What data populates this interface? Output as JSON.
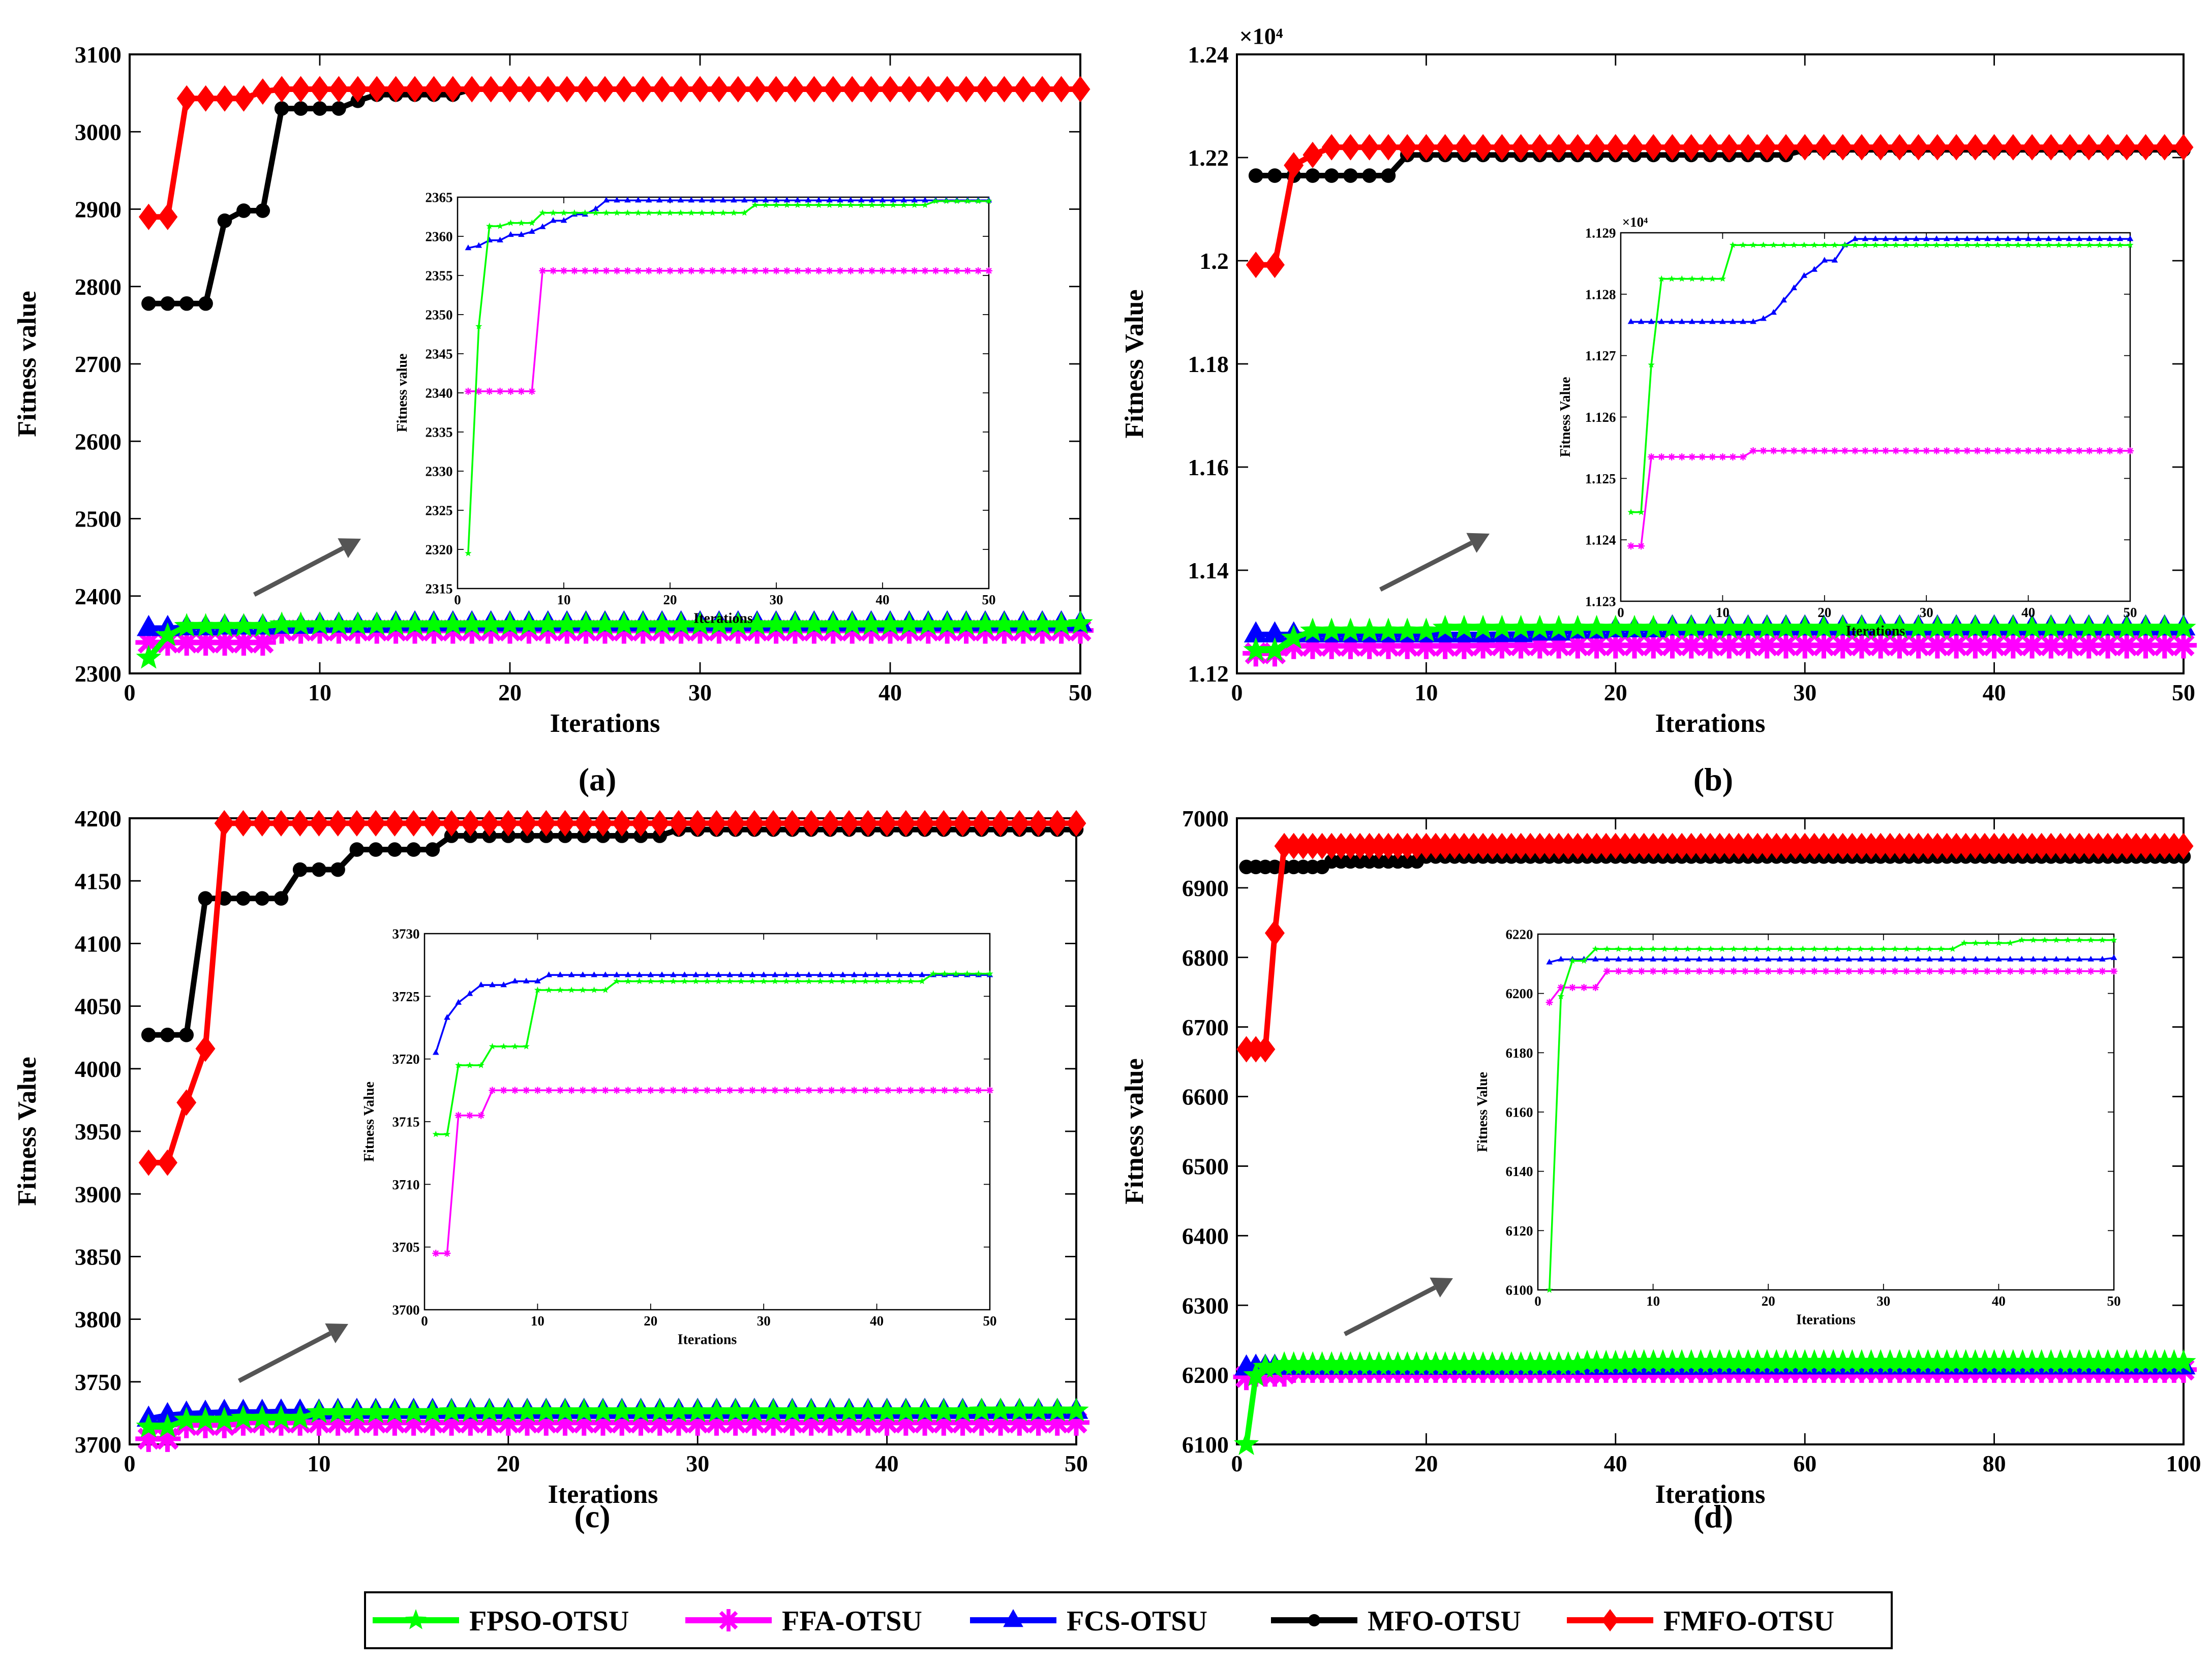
{
  "legend": {
    "entries": [
      {
        "label": "FPSO-OTSU",
        "color": "#00ff00",
        "marker": "star"
      },
      {
        "label": "FFA-OTSU",
        "color": "#ff00ff",
        "marker": "asterisk"
      },
      {
        "label": "FCS-OTSU",
        "color": "#0000ff",
        "marker": "triangle"
      },
      {
        "label": "MFO-OTSU",
        "color": "#000000",
        "marker": "circle"
      },
      {
        "label": "FMFO-OTSU",
        "color": "#ff0000",
        "marker": "diamond"
      }
    ]
  },
  "chart_data": [
    {
      "type": "line",
      "panel_label": "(a)",
      "title": "",
      "xlabel": "Iterations",
      "ylabel": "Fitness value",
      "xlim": [
        0,
        50
      ],
      "ylim": [
        2300,
        3100
      ],
      "xticks": [
        0,
        10,
        20,
        30,
        40,
        50
      ],
      "yticks": [
        2300,
        2400,
        2500,
        2600,
        2700,
        2800,
        2900,
        3000,
        3100
      ],
      "n_iter": 50,
      "series": [
        {
          "name": "FPSO-OTSU",
          "steps": [
            [
              1,
              2320
            ],
            [
              2,
              2349
            ],
            [
              3,
              2361
            ],
            [
              8,
              2363
            ],
            [
              50,
              2364.5
            ]
          ]
        },
        {
          "name": "FFA-OTSU",
          "steps": [
            [
              1,
              2340
            ],
            [
              8,
              2355.5
            ]
          ]
        },
        {
          "name": "FCS-OTSU",
          "steps": [
            [
              1,
              2358.5
            ],
            [
              3,
              2359.5
            ],
            [
              5,
              2360.5
            ],
            [
              8,
              2361.5
            ],
            [
              10,
              2363
            ],
            [
              14,
              2364.5
            ]
          ]
        },
        {
          "name": "MFO-OTSU",
          "steps": [
            [
              1,
              2778
            ],
            [
              5,
              2885
            ],
            [
              6,
              2898
            ],
            [
              8,
              3030
            ],
            [
              12,
              3040
            ],
            [
              13,
              3048
            ],
            [
              18,
              3055
            ]
          ]
        },
        {
          "name": "FMFO-OTSU",
          "steps": [
            [
              1,
              2890
            ],
            [
              3,
              3043
            ],
            [
              7,
              3052
            ],
            [
              8,
              3055
            ]
          ]
        }
      ],
      "inset": {
        "xlabel": "Iterations",
        "ylabel": "Fitness value",
        "xlim": [
          0,
          50
        ],
        "ylim": [
          2315,
          2365
        ],
        "xticks": [
          0,
          10,
          20,
          30,
          40,
          50
        ],
        "yticks": [
          2315,
          2320,
          2325,
          2330,
          2335,
          2340,
          2345,
          2350,
          2355,
          2360,
          2365
        ],
        "series": [
          {
            "name": "FPSO-OTSU",
            "steps": [
              [
                1,
                2319.5
              ],
              [
                2,
                2348.5
              ],
              [
                3,
                2361.3
              ],
              [
                5,
                2361.7
              ],
              [
                8,
                2363
              ],
              [
                28,
                2364
              ],
              [
                45,
                2364.5
              ]
            ]
          },
          {
            "name": "FFA-OTSU",
            "steps": [
              [
                1,
                2340.2
              ],
              [
                8,
                2355.6
              ]
            ]
          },
          {
            "name": "FCS-OTSU",
            "steps": [
              [
                1,
                2358.5
              ],
              [
                2,
                2358.8
              ],
              [
                3,
                2359.5
              ],
              [
                5,
                2360.2
              ],
              [
                7,
                2360.6
              ],
              [
                8,
                2361.2
              ],
              [
                9,
                2362
              ],
              [
                11,
                2362.8
              ],
              [
                13,
                2363.5
              ],
              [
                14,
                2364.6
              ]
            ]
          }
        ]
      }
    },
    {
      "type": "line",
      "panel_label": "(b)",
      "title": "",
      "xlabel": "Iterations",
      "ylabel": "Fitness Value",
      "exponent": "×10⁴",
      "xlim": [
        0,
        50
      ],
      "ylim": [
        1.12,
        1.24
      ],
      "xticks": [
        0,
        10,
        20,
        30,
        40,
        50
      ],
      "yticks": [
        1.12,
        1.14,
        1.16,
        1.18,
        1.2,
        1.22,
        1.24
      ],
      "n_iter": 50,
      "series": [
        {
          "name": "FPSO-OTSU",
          "steps": [
            [
              1,
              1.12445
            ],
            [
              3,
              1.12685
            ],
            [
              4,
              1.12825
            ],
            [
              11,
              1.1288
            ]
          ]
        },
        {
          "name": "FFA-OTSU",
          "steps": [
            [
              1,
              1.1239
            ],
            [
              3,
              1.12535
            ],
            [
              13,
              1.12545
            ]
          ]
        },
        {
          "name": "FCS-OTSU",
          "steps": [
            [
              1,
              1.12755
            ],
            [
              14,
              1.1276
            ],
            [
              16,
              1.1279
            ],
            [
              18,
              1.1283
            ],
            [
              20,
              1.12855
            ],
            [
              23,
              1.1289
            ]
          ]
        },
        {
          "name": "MFO-OTSU",
          "steps": [
            [
              1,
              1.2165
            ],
            [
              9,
              1.2205
            ],
            [
              30,
              1.2215
            ]
          ]
        },
        {
          "name": "FMFO-OTSU",
          "steps": [
            [
              1,
              1.1992
            ],
            [
              3,
              1.2185
            ],
            [
              4,
              1.2205
            ],
            [
              5,
              1.222
            ]
          ]
        }
      ],
      "inset": {
        "xlabel": "Iterations",
        "ylabel": "Fitness Value",
        "exponent": "×10⁴",
        "xlim": [
          0,
          50
        ],
        "ylim": [
          1.123,
          1.129
        ],
        "xticks": [
          0,
          10,
          20,
          30,
          40,
          50
        ],
        "yticks": [
          1.123,
          1.124,
          1.125,
          1.126,
          1.127,
          1.128,
          1.129
        ],
        "series": [
          {
            "name": "FPSO-OTSU",
            "steps": [
              [
                1,
                1.12445
              ],
              [
                3,
                1.12685
              ],
              [
                4,
                1.12825
              ],
              [
                11,
                1.1288
              ]
            ]
          },
          {
            "name": "FFA-OTSU",
            "steps": [
              [
                1,
                1.1239
              ],
              [
                3,
                1.12535
              ],
              [
                13,
                1.12545
              ]
            ]
          },
          {
            "name": "FCS-OTSU",
            "steps": [
              [
                1,
                1.12755
              ],
              [
                14,
                1.1276
              ],
              [
                15,
                1.1277
              ],
              [
                16,
                1.1279
              ],
              [
                17,
                1.1281
              ],
              [
                18,
                1.1283
              ],
              [
                19,
                1.1284
              ],
              [
                20,
                1.12855
              ],
              [
                22,
                1.1288
              ],
              [
                23,
                1.1289
              ]
            ]
          }
        ]
      }
    },
    {
      "type": "line",
      "panel_label": "(c)",
      "title": "",
      "xlabel": "Iterations",
      "ylabel": "Fitness Value",
      "xlim": [
        0,
        50
      ],
      "ylim": [
        3700,
        4200
      ],
      "xticks": [
        0,
        10,
        20,
        30,
        40,
        50
      ],
      "yticks": [
        3700,
        3750,
        3800,
        3850,
        3900,
        3950,
        4000,
        4050,
        4100,
        4150,
        4200
      ],
      "n_iter": 50,
      "series": [
        {
          "name": "FPSO-OTSU",
          "steps": [
            [
              1,
              3714
            ],
            [
              3,
              3719.5
            ],
            [
              6,
              3721
            ],
            [
              10,
              3725.5
            ],
            [
              17,
              3726.2
            ],
            [
              45,
              3726.8
            ]
          ]
        },
        {
          "name": "FFA-OTSU",
          "steps": [
            [
              1,
              3704.5
            ],
            [
              3,
              3715.5
            ],
            [
              6,
              3717.5
            ]
          ]
        },
        {
          "name": "FCS-OTSU",
          "steps": [
            [
              1,
              3720.5
            ],
            [
              2,
              3723.3
            ],
            [
              3,
              3724.5
            ],
            [
              4,
              3725.2
            ],
            [
              5,
              3725.9
            ],
            [
              8,
              3726.2
            ],
            [
              11,
              3726.7
            ]
          ]
        },
        {
          "name": "MFO-OTSU",
          "steps": [
            [
              1,
              4027
            ],
            [
              4,
              4136
            ],
            [
              9,
              4159
            ],
            [
              12,
              4175
            ],
            [
              17,
              4186
            ],
            [
              29,
              4191
            ]
          ]
        },
        {
          "name": "FMFO-OTSU",
          "steps": [
            [
              1,
              3925
            ],
            [
              3,
              3973
            ],
            [
              4,
              4016
            ],
            [
              5,
              4196
            ]
          ]
        }
      ],
      "inset": {
        "xlabel": "Iterations",
        "ylabel": "Fitness Value",
        "xlim": [
          0,
          50
        ],
        "ylim": [
          3700,
          3730
        ],
        "xticks": [
          0,
          10,
          20,
          30,
          40,
          50
        ],
        "yticks": [
          3700,
          3705,
          3710,
          3715,
          3720,
          3725,
          3730
        ],
        "series": [
          {
            "name": "FPSO-OTSU",
            "steps": [
              [
                1,
                3714
              ],
              [
                3,
                3719.5
              ],
              [
                6,
                3721
              ],
              [
                10,
                3725.5
              ],
              [
                17,
                3726.2
              ],
              [
                45,
                3726.8
              ]
            ]
          },
          {
            "name": "FFA-OTSU",
            "steps": [
              [
                1,
                3704.5
              ],
              [
                3,
                3715.5
              ],
              [
                6,
                3717.5
              ]
            ]
          },
          {
            "name": "FCS-OTSU",
            "steps": [
              [
                1,
                3720.5
              ],
              [
                2,
                3723.3
              ],
              [
                3,
                3724.5
              ],
              [
                4,
                3725.2
              ],
              [
                5,
                3725.9
              ],
              [
                8,
                3726.2
              ],
              [
                11,
                3726.7
              ]
            ]
          }
        ]
      }
    },
    {
      "type": "line",
      "panel_label": "(d)",
      "title": "",
      "xlabel": "Iterations",
      "ylabel": "Fitness value",
      "xlim": [
        0,
        100
      ],
      "ylim": [
        6100,
        7000
      ],
      "xticks": [
        0,
        20,
        40,
        60,
        80,
        100
      ],
      "yticks": [
        6100,
        6200,
        6300,
        6400,
        6500,
        6600,
        6700,
        6800,
        6900,
        7000
      ],
      "n_iter": 100,
      "series": [
        {
          "name": "FPSO-OTSU",
          "steps": [
            [
              1,
              6100
            ],
            [
              2,
              6199
            ],
            [
              3,
              6211
            ],
            [
              5,
              6215
            ],
            [
              37,
              6217
            ],
            [
              42,
              6218
            ]
          ]
        },
        {
          "name": "FFA-OTSU",
          "steps": [
            [
              1,
              6197
            ],
            [
              2,
              6202
            ],
            [
              6,
              6207.5
            ]
          ]
        },
        {
          "name": "FCS-OTSU",
          "steps": [
            [
              1,
              6210.5
            ],
            [
              2,
              6211.5
            ],
            [
              50,
              6212
            ]
          ]
        },
        {
          "name": "MFO-OTSU",
          "steps": [
            [
              1,
              6930
            ],
            [
              10,
              6938
            ],
            [
              20,
              6945
            ]
          ]
        },
        {
          "name": "FMFO-OTSU",
          "steps": [
            [
              1,
              6668
            ],
            [
              4,
              6835
            ],
            [
              5,
              6960
            ]
          ]
        }
      ],
      "inset": {
        "xlabel": "Iterations",
        "ylabel": "Fitness Value",
        "xlim": [
          0,
          50
        ],
        "ylim": [
          6100,
          6220
        ],
        "xticks": [
          0,
          10,
          20,
          30,
          40,
          50
        ],
        "yticks": [
          6100,
          6120,
          6140,
          6160,
          6180,
          6200,
          6220
        ],
        "series": [
          {
            "name": "FPSO-OTSU",
            "steps": [
              [
                1,
                6100
              ],
              [
                2,
                6199
              ],
              [
                3,
                6211
              ],
              [
                5,
                6215
              ],
              [
                37,
                6217
              ],
              [
                42,
                6218
              ]
            ]
          },
          {
            "name": "FFA-OTSU",
            "steps": [
              [
                1,
                6197
              ],
              [
                2,
                6202
              ],
              [
                6,
                6207.5
              ]
            ]
          },
          {
            "name": "FCS-OTSU",
            "steps": [
              [
                1,
                6210.5
              ],
              [
                2,
                6211.5
              ],
              [
                50,
                6212
              ]
            ]
          }
        ]
      }
    }
  ]
}
